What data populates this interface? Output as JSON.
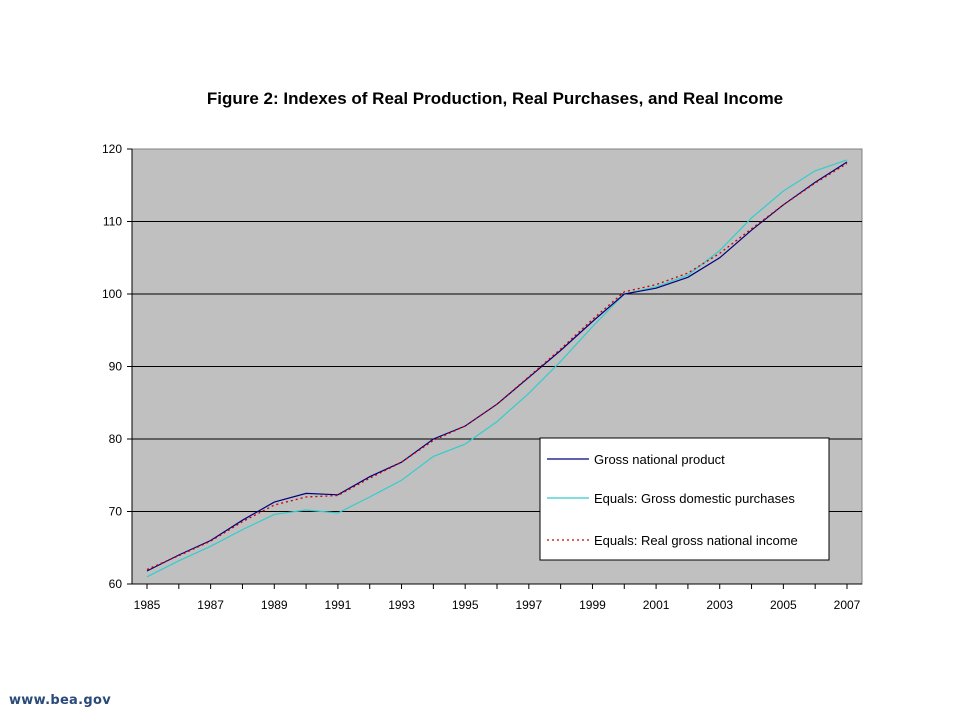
{
  "chart_data": {
    "type": "line",
    "title": "Figure 2:  Indexes of Real Production, Real Purchases, and Real Income",
    "xlabel": "",
    "ylabel": "",
    "ylim": [
      60,
      120
    ],
    "y_ticks": [
      "60",
      "70",
      "80",
      "90",
      "100",
      "110",
      "120"
    ],
    "x_tick_labels": [
      "1985",
      "1987",
      "1989",
      "1991",
      "1993",
      "1995",
      "1997",
      "1999",
      "2001",
      "2003",
      "2005",
      "2007"
    ],
    "x": [
      1985,
      1986,
      1987,
      1988,
      1989,
      1990,
      1991,
      1992,
      1993,
      1994,
      1995,
      1996,
      1997,
      1998,
      1999,
      2000,
      2001,
      2002,
      2003,
      2004,
      2005,
      2006,
      2007
    ],
    "grid": "horizontal",
    "legend_placement": "bottom-right",
    "plot_background": "#c0c0c0",
    "series": [
      {
        "name": "Gross national product",
        "color": "#000080",
        "style": "solid",
        "values": [
          61.8,
          64.0,
          66.0,
          68.8,
          71.3,
          72.5,
          72.3,
          74.8,
          76.8,
          80.0,
          81.8,
          84.8,
          88.5,
          92.2,
          96.2,
          100.0,
          100.8,
          102.3,
          105.0,
          108.8,
          112.3,
          115.4,
          118.2
        ]
      },
      {
        "name": "Equals: Gross domestic purchases",
        "color": "#33cccc",
        "style": "solid",
        "values": [
          61.0,
          63.2,
          65.2,
          67.5,
          69.6,
          70.2,
          69.8,
          72.0,
          74.3,
          77.6,
          79.3,
          82.4,
          86.3,
          90.7,
          95.5,
          100.0,
          101.0,
          102.6,
          106.0,
          110.5,
          114.2,
          117.0,
          118.5
        ]
      },
      {
        "name": "Equals: Real gross national income",
        "color": "#cc0000",
        "style": "dotted",
        "values": [
          62.0,
          63.9,
          65.9,
          68.6,
          70.9,
          72.0,
          72.2,
          74.6,
          76.8,
          79.8,
          81.8,
          84.8,
          88.6,
          92.4,
          96.5,
          100.3,
          101.3,
          102.9,
          105.6,
          109.0,
          112.3,
          115.3,
          118.0
        ]
      }
    ]
  },
  "footer": {
    "url": "www.bea.gov"
  }
}
